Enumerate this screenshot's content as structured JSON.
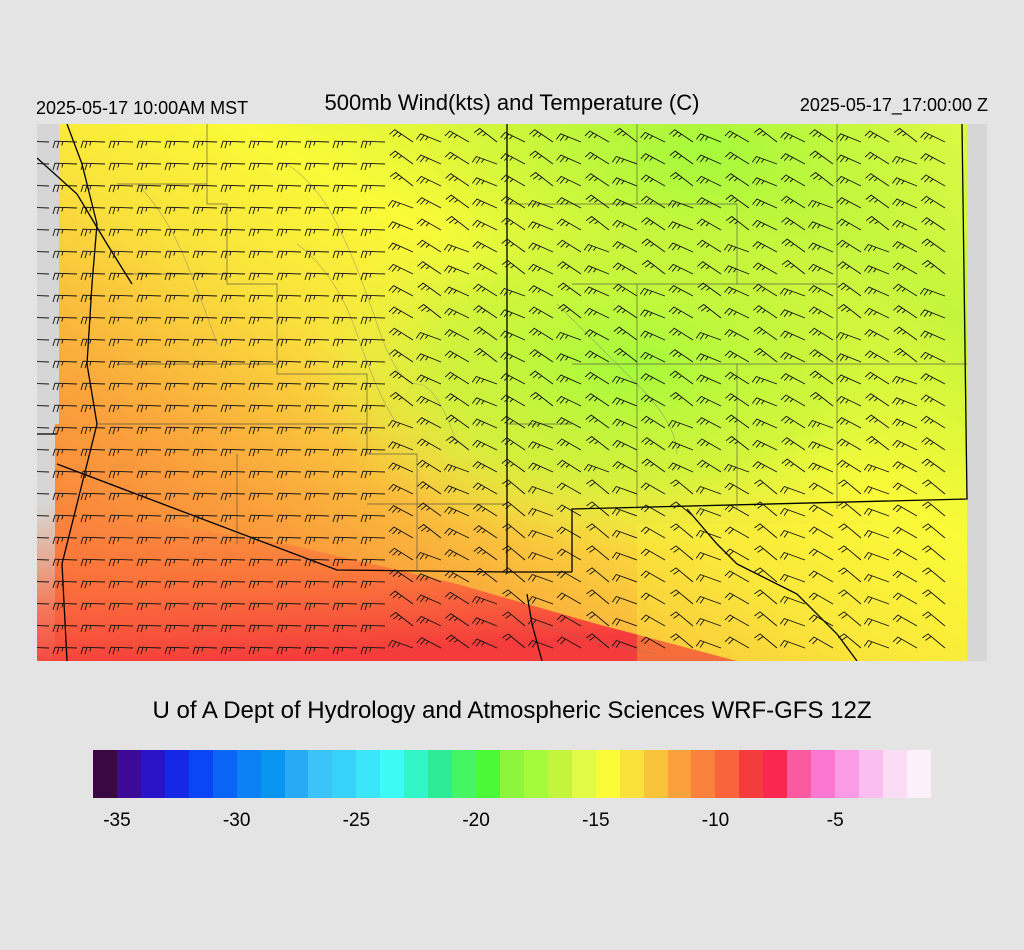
{
  "header": {
    "local_time": "2025-05-17 10:00AM MST",
    "title": "500mb Wind(kts) and Temperature (C)",
    "valid_time": "2025-05-17_17:00:00 Z"
  },
  "credit": "U of A Dept of Hydrology and Atmospheric Sciences WRF-GFS 12Z",
  "colorbar": {
    "unit_note": "",
    "colors": [
      "#3a0842",
      "#3c0a96",
      "#2a14c8",
      "#1428e6",
      "#0a46f5",
      "#0a64f5",
      "#0a82f5",
      "#0a96f0",
      "#28aaf5",
      "#3cc3fa",
      "#37d2fa",
      "#3ce6fa",
      "#3cfaf5",
      "#32f5c8",
      "#2deb96",
      "#46f564",
      "#4bfa37",
      "#8cf53c",
      "#a5fa3c",
      "#c3f53c",
      "#e1fa46",
      "#fafa37",
      "#fae13c",
      "#fac33c",
      "#faa03c",
      "#fa823c",
      "#fa643c",
      "#f53c3c",
      "#fa2850",
      "#fa5aa0",
      "#fa78d2",
      "#fa9be6",
      "#fabef0",
      "#fadcf5",
      "#fcf0fa"
    ],
    "labels": [
      "-35",
      "-30",
      "-25",
      "-20",
      "-15",
      "-10",
      "-5"
    ],
    "range": [
      -36,
      -1
    ]
  },
  "map": {
    "field": "500mb temperature (C) with wind barbs (kts)",
    "temp_range_shown": [
      -20,
      -8
    ]
  }
}
